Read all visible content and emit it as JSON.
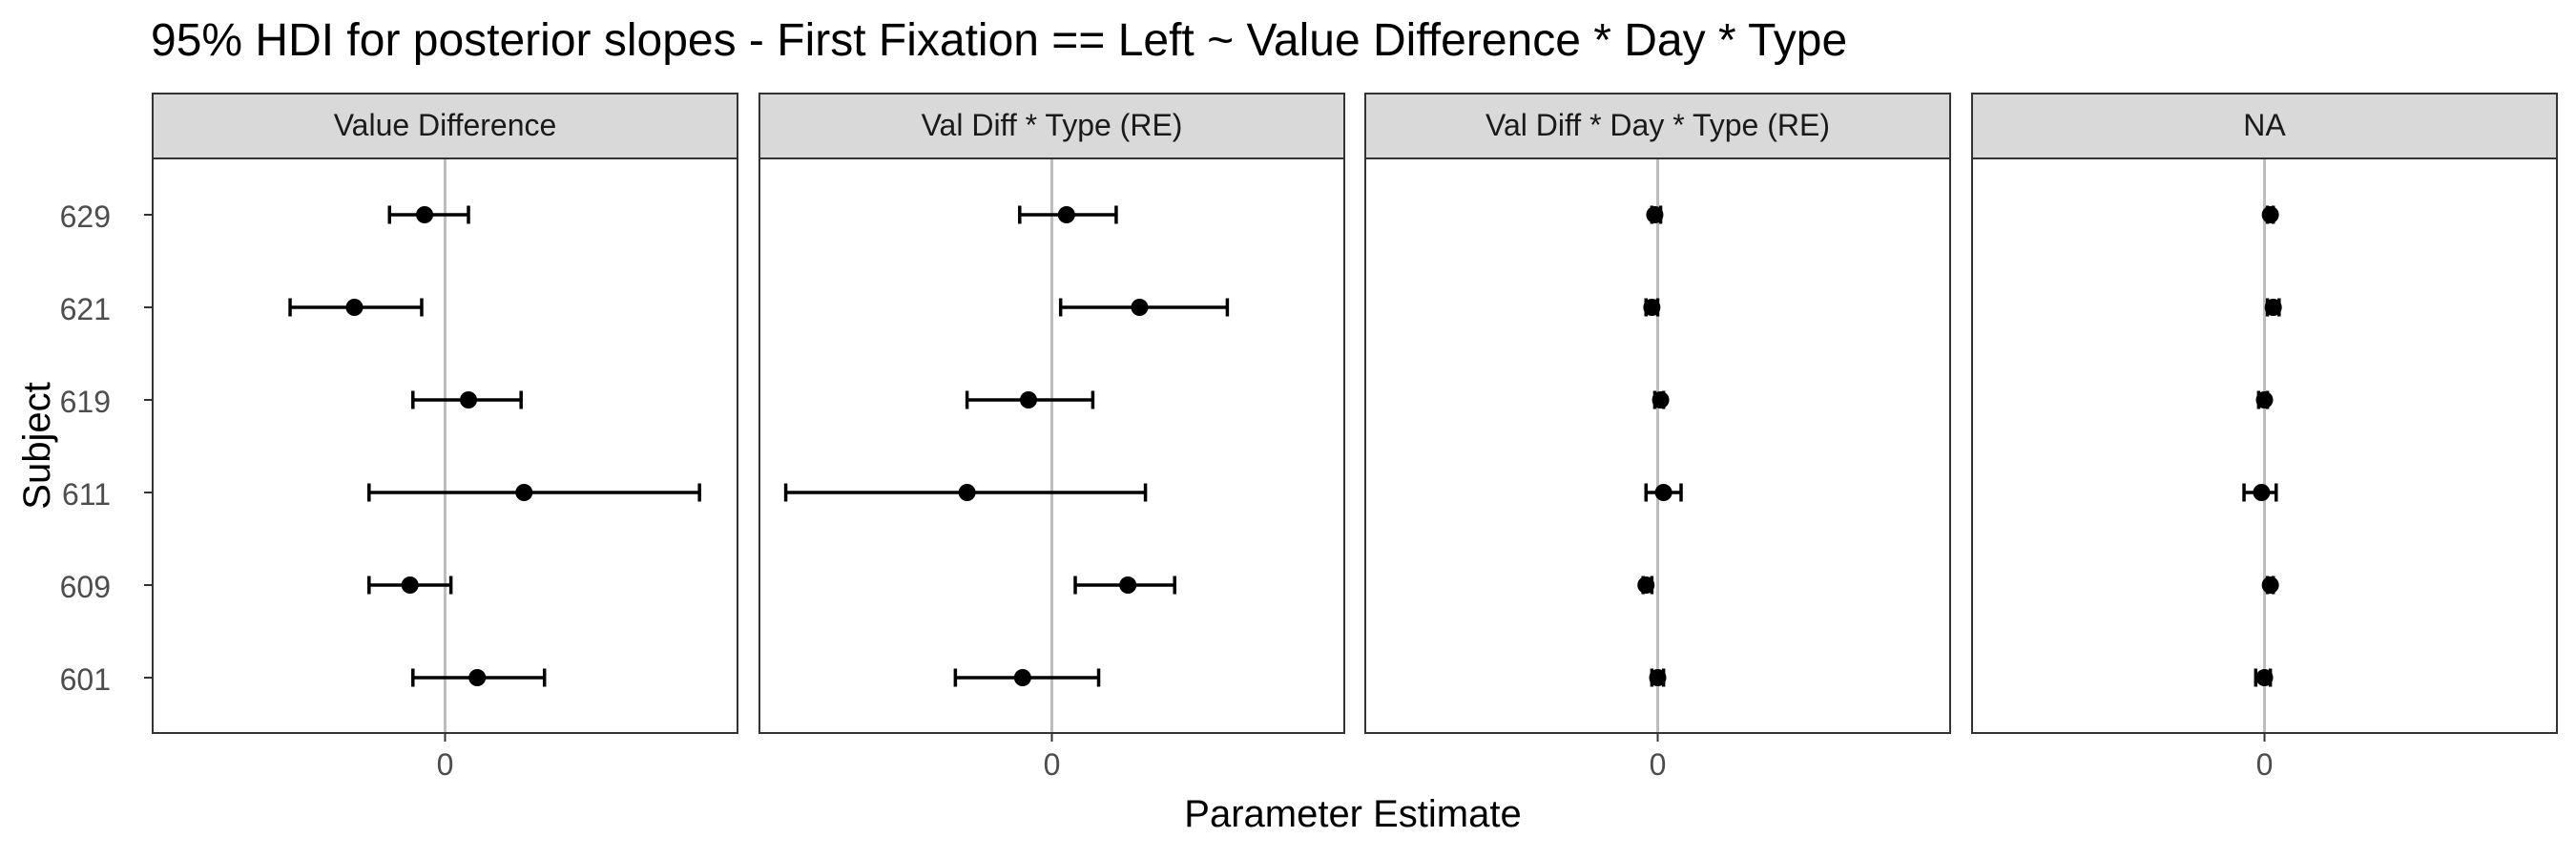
{
  "chart_data": {
    "type": "errorbar",
    "title": "95% HDI for posterior slopes - First Fixation == Left ~ Value Difference * Day * Type",
    "xlabel": "Parameter Estimate",
    "ylabel": "Subject",
    "subjects": [
      "629",
      "621",
      "619",
      "611",
      "609",
      "601"
    ],
    "x_ticks": [
      0
    ],
    "x_tick_labels": [
      "0"
    ],
    "reference_line": 0,
    "grid": false,
    "panels": [
      {
        "label": "Value Difference",
        "xlim": [
          -1.0,
          1.0
        ],
        "points": [
          {
            "subject": "629",
            "estimate": -0.07,
            "lower": -0.19,
            "upper": 0.08
          },
          {
            "subject": "621",
            "estimate": -0.31,
            "lower": -0.53,
            "upper": -0.08
          },
          {
            "subject": "619",
            "estimate": 0.08,
            "lower": -0.11,
            "upper": 0.26
          },
          {
            "subject": "611",
            "estimate": 0.27,
            "lower": -0.26,
            "upper": 0.87
          },
          {
            "subject": "609",
            "estimate": -0.12,
            "lower": -0.26,
            "upper": 0.02
          },
          {
            "subject": "601",
            "estimate": 0.11,
            "lower": -0.11,
            "upper": 0.34
          }
        ]
      },
      {
        "label": "Val Diff * Type (RE)",
        "xlim": [
          -1.0,
          1.0
        ],
        "points": [
          {
            "subject": "629",
            "estimate": 0.05,
            "lower": -0.11,
            "upper": 0.22
          },
          {
            "subject": "621",
            "estimate": 0.3,
            "lower": 0.03,
            "upper": 0.6
          },
          {
            "subject": "619",
            "estimate": -0.08,
            "lower": -0.29,
            "upper": 0.14
          },
          {
            "subject": "611",
            "estimate": -0.29,
            "lower": -0.91,
            "upper": 0.32
          },
          {
            "subject": "609",
            "estimate": 0.26,
            "lower": 0.08,
            "upper": 0.42
          },
          {
            "subject": "601",
            "estimate": -0.1,
            "lower": -0.33,
            "upper": 0.16
          }
        ]
      },
      {
        "label": "Val Diff * Day * Type (RE)",
        "xlim": [
          -1.0,
          1.0
        ],
        "points": [
          {
            "subject": "629",
            "estimate": -0.01,
            "lower": -0.02,
            "upper": 0.01
          },
          {
            "subject": "621",
            "estimate": -0.02,
            "lower": -0.04,
            "upper": 0.0
          },
          {
            "subject": "619",
            "estimate": 0.01,
            "lower": -0.01,
            "upper": 0.02
          },
          {
            "subject": "611",
            "estimate": 0.02,
            "lower": -0.04,
            "upper": 0.08
          },
          {
            "subject": "609",
            "estimate": -0.04,
            "lower": -0.05,
            "upper": -0.02
          },
          {
            "subject": "601",
            "estimate": 0.0,
            "lower": -0.02,
            "upper": 0.02
          }
        ]
      },
      {
        "label": "NA",
        "xlim": [
          -1.0,
          1.0
        ],
        "points": [
          {
            "subject": "629",
            "estimate": 0.02,
            "lower": 0.01,
            "upper": 0.03
          },
          {
            "subject": "621",
            "estimate": 0.03,
            "lower": 0.01,
            "upper": 0.05
          },
          {
            "subject": "619",
            "estimate": 0.0,
            "lower": -0.02,
            "upper": 0.01
          },
          {
            "subject": "611",
            "estimate": -0.01,
            "lower": -0.07,
            "upper": 0.04
          },
          {
            "subject": "609",
            "estimate": 0.02,
            "lower": 0.01,
            "upper": 0.03
          },
          {
            "subject": "601",
            "estimate": 0.0,
            "lower": -0.03,
            "upper": 0.02
          }
        ]
      }
    ]
  }
}
